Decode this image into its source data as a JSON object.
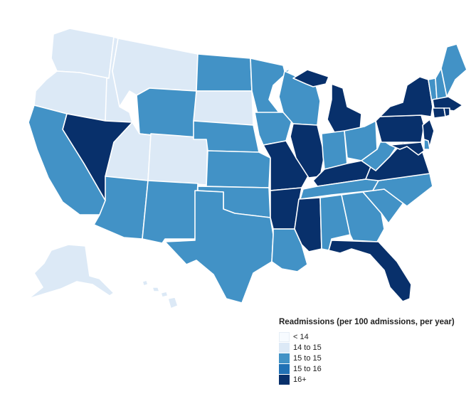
{
  "legend": {
    "title": "Readmissions (per 100 admissions, per year)",
    "items": [
      {
        "label": "< 14",
        "color": "#f7fbff"
      },
      {
        "label": "14 to 15",
        "color": "#dce9f6"
      },
      {
        "label": "15 to 15",
        "color": "#4292c6"
      },
      {
        "label": "15 to 16",
        "color": "#2171b5"
      },
      {
        "label": "16+",
        "color": "#08306b"
      }
    ]
  },
  "state_bins": {
    "WA": 1,
    "OR": 1,
    "ID": 1,
    "MT": 1,
    "UT": 1,
    "CO": 1,
    "SD": 1,
    "AK": 1,
    "HI": 1,
    "CA": 2,
    "AZ": 2,
    "NM": 2,
    "TX": 2,
    "OK": 2,
    "KS": 2,
    "NE": 2,
    "WY": 2,
    "ND": 2,
    "MN": 2,
    "IA": 2,
    "WI": 2,
    "IN": 2,
    "OH": 2,
    "WV": 2,
    "TN": 2,
    "AL": 2,
    "GA": 2,
    "SC": 2,
    "NC": 2,
    "LA": 2,
    "ME": 2,
    "VT": 2,
    "NH": 2,
    "DE": 2,
    "NV": 4,
    "MO": 4,
    "AR": 4,
    "MS": 4,
    "IL": 4,
    "MI": 4,
    "KY": 4,
    "VA": 4,
    "FL": 4,
    "NY": 4,
    "PA": 4,
    "NJ": 4,
    "MD": 4,
    "MA": 4,
    "CT": 4,
    "RI": 4
  }
}
